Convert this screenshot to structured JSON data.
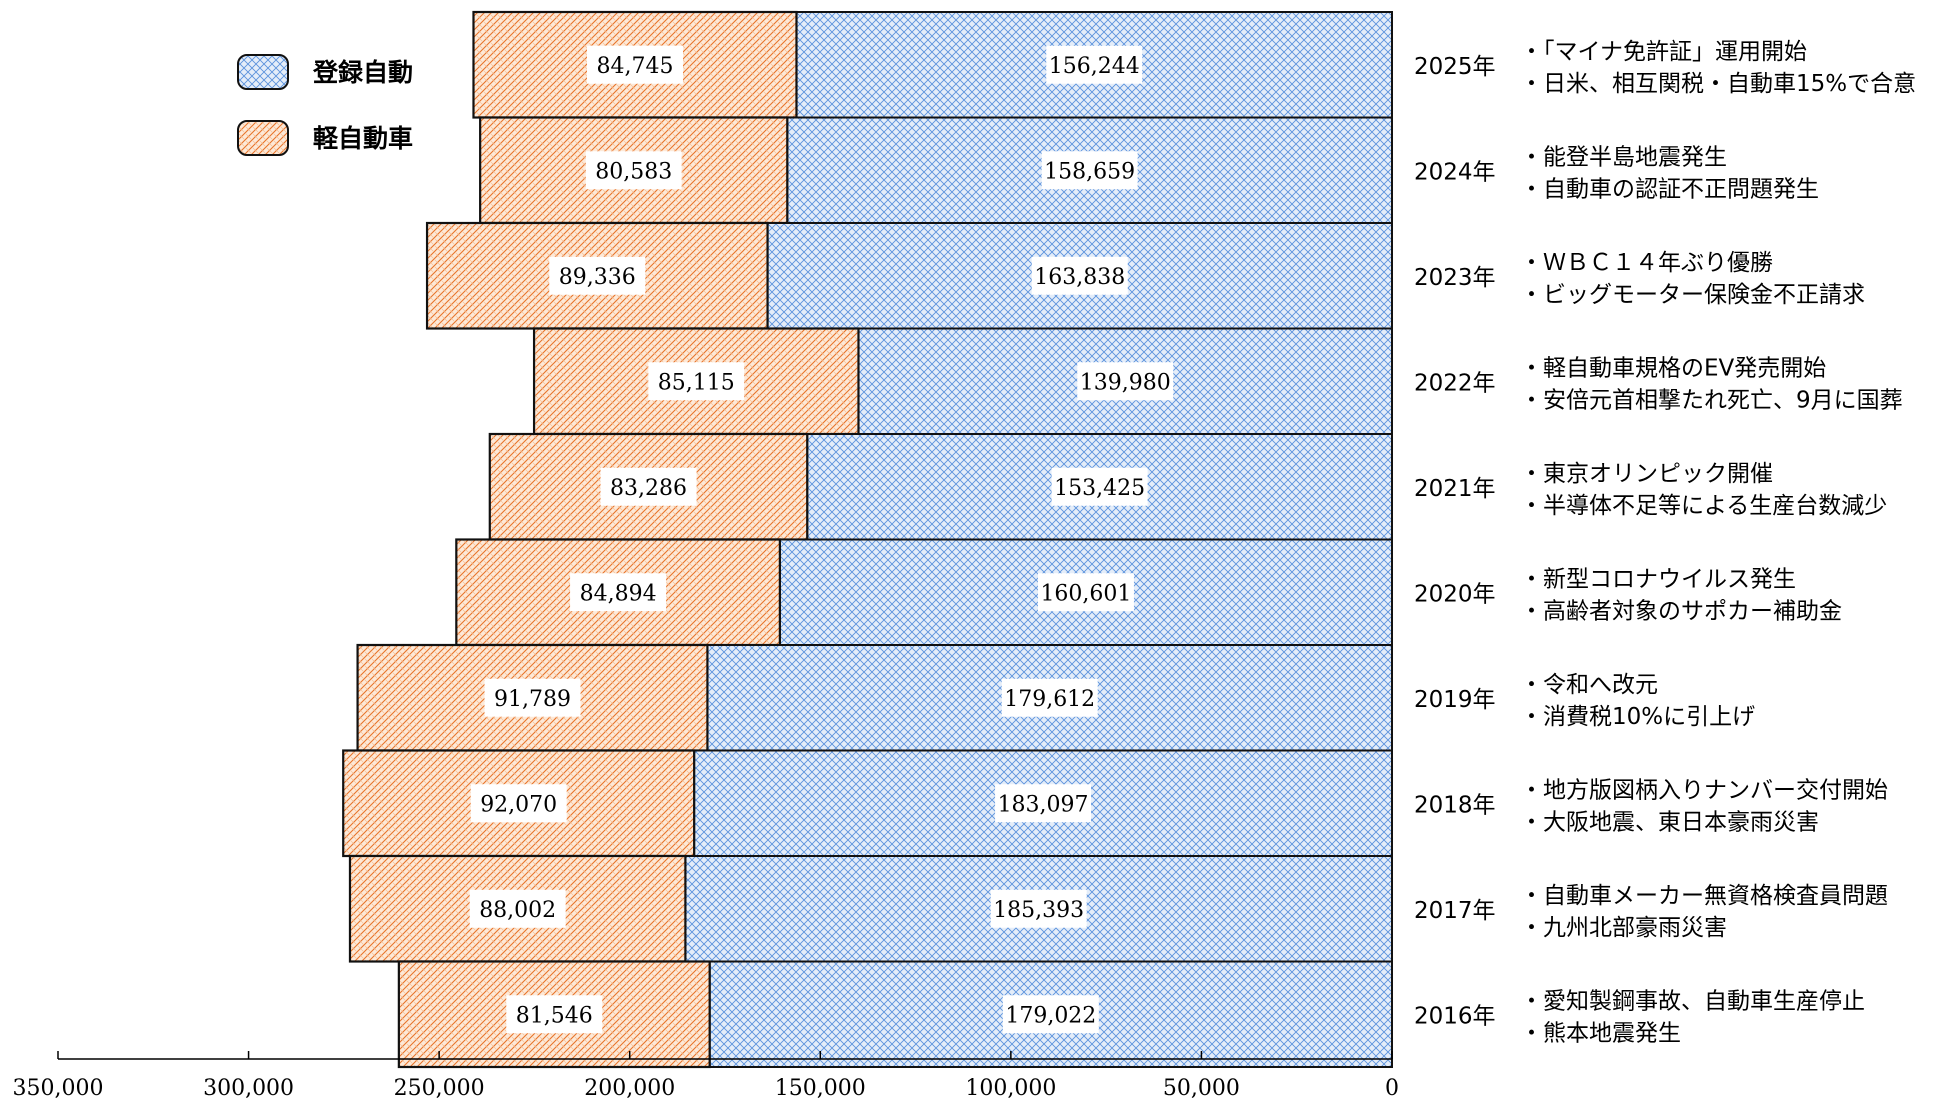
{
  "chart_data": {
    "type": "bar",
    "orientation": "horizontal-stacked",
    "categories": [
      "2025年",
      "2024年",
      "2023年",
      "2022年",
      "2021年",
      "2020年",
      "2019年",
      "2018年",
      "2017年",
      "2016年"
    ],
    "series": [
      {
        "name": "登録自動",
        "color": "#4a86d8",
        "fill": "#dce8f7",
        "values": [
          156244,
          158659,
          163838,
          139980,
          153425,
          160601,
          179612,
          183097,
          185393,
          179022
        ]
      },
      {
        "name": "軽自動車",
        "color": "#e8742a",
        "fill": "#fbe3cf",
        "values": [
          84745,
          80583,
          89336,
          85115,
          83286,
          84894,
          91789,
          92070,
          88002,
          81546
        ]
      }
    ],
    "value_labels": [
      [
        "156,244",
        "84,745"
      ],
      [
        "158,659",
        "80,583"
      ],
      [
        "163,838",
        "89,336"
      ],
      [
        "139,980",
        "85,115"
      ],
      [
        "153,425",
        "83,286"
      ],
      [
        "160,601",
        "84,894"
      ],
      [
        "179,612",
        "91,789"
      ],
      [
        "183,097",
        "92,070"
      ],
      [
        "185,393",
        "88,002"
      ],
      [
        "179,022",
        "81,546"
      ]
    ],
    "events": [
      [
        "・「マイナ免許証」運用開始",
        "・日米、相互関税・自動車15%で合意"
      ],
      [
        "・能登半島地震発生",
        "・自動車の認証不正問題発生"
      ],
      [
        "・ＷＢＣ１４年ぶり優勝",
        "・ビッグモーター保険金不正請求"
      ],
      [
        "・軽自動車規格のEV発売開始",
        "・安倍元首相撃たれ死亡、9月に国葬"
      ],
      [
        "・東京オリンピック開催",
        "・半導体不足等による生産台数減少"
      ],
      [
        "・新型コロナウイルス発生",
        "・高齢者対象のサポカー補助金"
      ],
      [
        "・令和へ改元",
        "・消費税10%に引上げ"
      ],
      [
        "・地方版図柄入りナンバー交付開始",
        "・大阪地震、東日本豪雨災害"
      ],
      [
        "・自動車メーカー無資格検査員問題",
        "・九州北部豪雨災害"
      ],
      [
        "・愛知製鋼事故、自動車生産停止",
        "・熊本地震発生"
      ]
    ],
    "x_axis": {
      "direction": "reversed",
      "xlim": [
        0,
        350000
      ],
      "ticks": [
        350000,
        300000,
        250000,
        200000,
        150000,
        100000,
        50000,
        0
      ],
      "tick_labels": [
        "350,000",
        "300,000",
        "250,000",
        "200,000",
        "150,000",
        "100,000",
        "50,000",
        "0"
      ]
    },
    "legend": {
      "position": "top-left",
      "entries": [
        "登録自動",
        "軽自動車"
      ]
    },
    "grid": false
  }
}
